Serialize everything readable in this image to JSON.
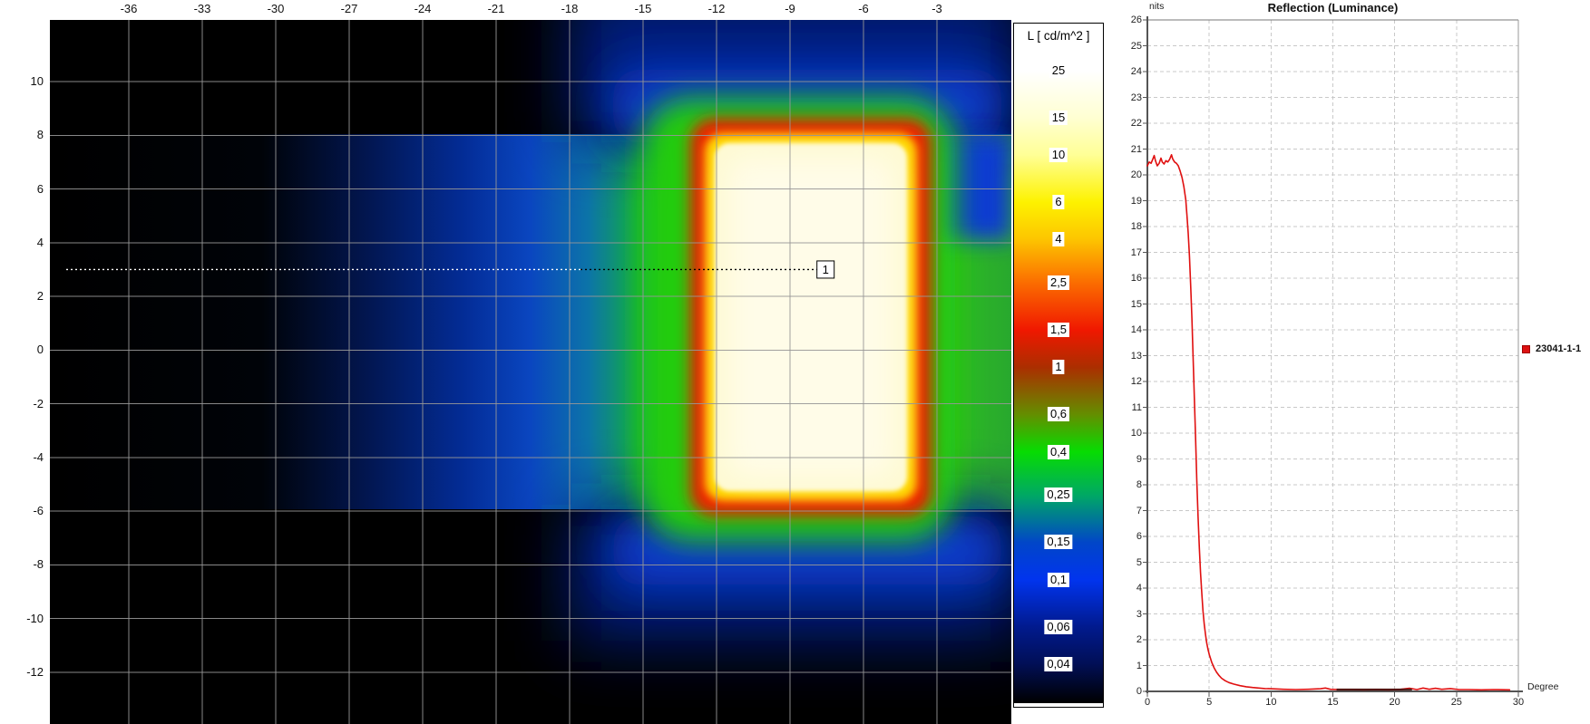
{
  "falsecolor_map": {
    "x_axis": {
      "ticks": [
        -36,
        -33,
        -30,
        -27,
        -24,
        -21,
        -18,
        -15,
        -12,
        -9,
        -6,
        -3
      ]
    },
    "y_axis": {
      "ticks": [
        10,
        8,
        6,
        4,
        2,
        0,
        -2,
        -4,
        -6,
        -8,
        -10,
        -12
      ]
    },
    "measure_line": {
      "marker_label": "1",
      "y_deg": 3.0,
      "x_deg_end": -7.9
    }
  },
  "colorbar": {
    "title": "L [ cd/m^2 ]",
    "entries": [
      {
        "label": "25",
        "value": 25,
        "color": "#ffffff"
      },
      {
        "label": "15",
        "value": 15,
        "color": "#ffffd2"
      },
      {
        "label": "10",
        "value": 10,
        "color": "#ffff96"
      },
      {
        "label": "6",
        "value": 6,
        "color": "#fdf200"
      },
      {
        "label": "4",
        "value": 4,
        "color": "#fdc500"
      },
      {
        "label": "2,5",
        "value": 2.5,
        "color": "#fb6c00"
      },
      {
        "label": "1,5",
        "value": 1.5,
        "color": "#f01800"
      },
      {
        "label": "1",
        "value": 1,
        "color": "#ab2e00"
      },
      {
        "label": "0,6",
        "value": 0.6,
        "color": "#648e00"
      },
      {
        "label": "0,4",
        "value": 0.4,
        "color": "#07dc02"
      },
      {
        "label": "0,25",
        "value": 0.25,
        "color": "#00a865"
      },
      {
        "label": "0,15",
        "value": 0.15,
        "color": "#0146c8"
      },
      {
        "label": "0,1",
        "value": 0.1,
        "color": "#0134ee"
      },
      {
        "label": "0,06",
        "value": 0.06,
        "color": "#011a8e"
      },
      {
        "label": "0,04",
        "value": 0.04,
        "color": "#010f56"
      }
    ],
    "gradient_top_color": "#ffffff",
    "gradient_bottom_color": "#000000"
  },
  "chart_data": [
    {
      "type": "heatmap",
      "title": "",
      "x_tick_labels": [
        "-36",
        "-33",
        "-30",
        "-27",
        "-24",
        "-21",
        "-18",
        "-15",
        "-12",
        "-9",
        "-6",
        "-3"
      ],
      "y_tick_labels": [
        "10",
        "8",
        "6",
        "4",
        "2",
        "0",
        "-2",
        "-4",
        "-6",
        "-8",
        "-10",
        "-12"
      ],
      "colorbar_label": "L [ cd/m^2 ]",
      "colorbar_values": [
        25,
        15,
        10,
        6,
        4,
        2.5,
        1.5,
        1,
        0.6,
        0.4,
        0.25,
        0.15,
        0.1,
        0.06,
        0.04
      ],
      "bright_region": {
        "x_deg_range": [
          -12.0,
          -4.2
        ],
        "y_deg_range": [
          -5.2,
          7.6
        ],
        "level": "> 25 cd/m^2"
      },
      "marker": {
        "id": "1",
        "y_deg": 3.0
      },
      "grid": true
    },
    {
      "type": "line",
      "title": "Reflection (Luminance)",
      "y_unit": "nits",
      "x_unit": "Degree",
      "ylim": [
        0,
        26
      ],
      "y_step": 1,
      "xlim": [
        0,
        30
      ],
      "x_tick_step": 5,
      "grid": "dashed",
      "legend_position": "right",
      "legend": [
        {
          "label": "23041-1-1",
          "color": "#dd1111"
        }
      ],
      "series": [
        {
          "name": "23041-1-1",
          "color": "#e01010",
          "points": [
            [
              0,
              20.35
            ],
            [
              0.15,
              20.5
            ],
            [
              0.3,
              20.45
            ],
            [
              0.45,
              20.62
            ],
            [
              0.55,
              20.75
            ],
            [
              0.65,
              20.55
            ],
            [
              0.8,
              20.35
            ],
            [
              0.95,
              20.45
            ],
            [
              1.1,
              20.65
            ],
            [
              1.2,
              20.5
            ],
            [
              1.35,
              20.42
            ],
            [
              1.5,
              20.55
            ],
            [
              1.65,
              20.5
            ],
            [
              1.8,
              20.6
            ],
            [
              1.95,
              20.78
            ],
            [
              2.05,
              20.62
            ],
            [
              2.2,
              20.5
            ],
            [
              2.35,
              20.45
            ],
            [
              2.5,
              20.35
            ],
            [
              2.65,
              20.15
            ],
            [
              2.8,
              19.9
            ],
            [
              2.95,
              19.55
            ],
            [
              3.1,
              19.05
            ],
            [
              3.2,
              18.45
            ],
            [
              3.3,
              17.75
            ],
            [
              3.4,
              16.85
            ],
            [
              3.5,
              15.75
            ],
            [
              3.6,
              14.45
            ],
            [
              3.7,
              12.95
            ],
            [
              3.8,
              11.35
            ],
            [
              3.9,
              9.75
            ],
            [
              4,
              8.15
            ],
            [
              4.1,
              6.75
            ],
            [
              4.2,
              5.55
            ],
            [
              4.3,
              4.6
            ],
            [
              4.4,
              3.8
            ],
            [
              4.5,
              3.12
            ],
            [
              4.6,
              2.6
            ],
            [
              4.7,
              2.2
            ],
            [
              4.8,
              1.88
            ],
            [
              4.9,
              1.63
            ],
            [
              5,
              1.43
            ],
            [
              5.2,
              1.13
            ],
            [
              5.4,
              0.91
            ],
            [
              5.6,
              0.74
            ],
            [
              5.8,
              0.61
            ],
            [
              6,
              0.51
            ],
            [
              6.3,
              0.41
            ],
            [
              6.6,
              0.34
            ],
            [
              7,
              0.28
            ],
            [
              7.5,
              0.22
            ],
            [
              8,
              0.18
            ],
            [
              8.5,
              0.15
            ],
            [
              9,
              0.13
            ],
            [
              9.5,
              0.11
            ],
            [
              10,
              0.1
            ],
            [
              11,
              0.08
            ],
            [
              12,
              0.07
            ],
            [
              13,
              0.08
            ],
            [
              14,
              0.1
            ],
            [
              14.4,
              0.13
            ],
            [
              14.8,
              0.08
            ],
            [
              15.5,
              0.07
            ],
            [
              16.5,
              0.07
            ],
            [
              17.5,
              0.06
            ],
            [
              18.5,
              0.07
            ],
            [
              19.5,
              0.06
            ],
            [
              20.5,
              0.08
            ],
            [
              21.2,
              0.12
            ],
            [
              21.8,
              0.07
            ],
            [
              22.3,
              0.13
            ],
            [
              22.8,
              0.08
            ],
            [
              23.3,
              0.12
            ],
            [
              23.8,
              0.08
            ],
            [
              24.5,
              0.11
            ],
            [
              25.2,
              0.07
            ],
            [
              26,
              0.07
            ],
            [
              27,
              0.06
            ],
            [
              28,
              0.07
            ],
            [
              29.3,
              0.06
            ]
          ],
          "overlay_dark_segment": {
            "from_deg": 15.3,
            "to_deg": 21.4,
            "nits": 0.07
          }
        }
      ]
    }
  ]
}
